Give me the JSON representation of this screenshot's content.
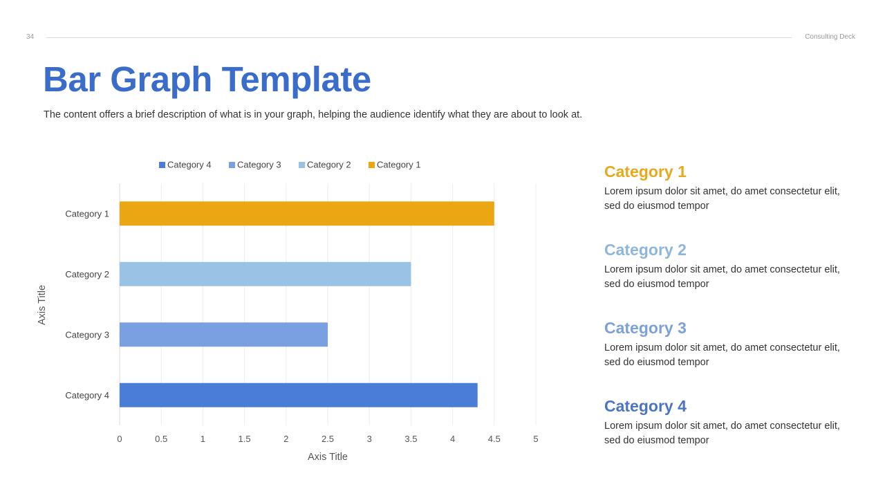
{
  "header": {
    "page_number": "34",
    "deck_name": "Consulting Deck"
  },
  "title": "Bar Graph Template",
  "subtitle": "The content offers a brief description of what is in your graph, helping the audience identify what they are about to look at.",
  "chart_data": {
    "type": "bar",
    "orientation": "horizontal",
    "categories": [
      "Category 1",
      "Category 2",
      "Category 3",
      "Category 4"
    ],
    "values": [
      4.5,
      3.5,
      2.5,
      4.3
    ],
    "bar_colors": [
      "#eba713",
      "#9ac2e4",
      "#7aa0e2",
      "#4a7dd8"
    ],
    "legend": [
      {
        "name": "Category 4",
        "color": "#4a7dd8"
      },
      {
        "name": "Category 3",
        "color": "#7aa0e2"
      },
      {
        "name": "Category 2",
        "color": "#9ac2e4"
      },
      {
        "name": "Category 1",
        "color": "#eba713"
      }
    ],
    "legend_position": "top",
    "xlabel": "Axis Title",
    "ylabel": "Axis Title",
    "xlim": [
      0,
      5
    ],
    "xticks": [
      "0",
      "0.5",
      "1",
      "1.5",
      "2",
      "2.5",
      "3",
      "3.5",
      "4",
      "4.5",
      "5"
    ],
    "grid": true
  },
  "categories_panel": [
    {
      "title": "Category 1",
      "description": "Lorem ipsum dolor sit amet, do amet consectetur elit, sed do eiusmod tempor",
      "color": "#e7a91c"
    },
    {
      "title": "Category 2",
      "description": "Lorem ipsum dolor sit amet, do amet consectetur elit, sed do eiusmod tempor",
      "color": "#8eb5dc"
    },
    {
      "title": "Category 3",
      "description": "Lorem ipsum dolor sit amet, do amet consectetur elit, sed do eiusmod tempor",
      "color": "#7ca0da"
    },
    {
      "title": "Category 4",
      "description": "Lorem ipsum dolor sit amet, do amet consectetur elit, sed do eiusmod tempor",
      "color": "#4a74c6"
    }
  ]
}
